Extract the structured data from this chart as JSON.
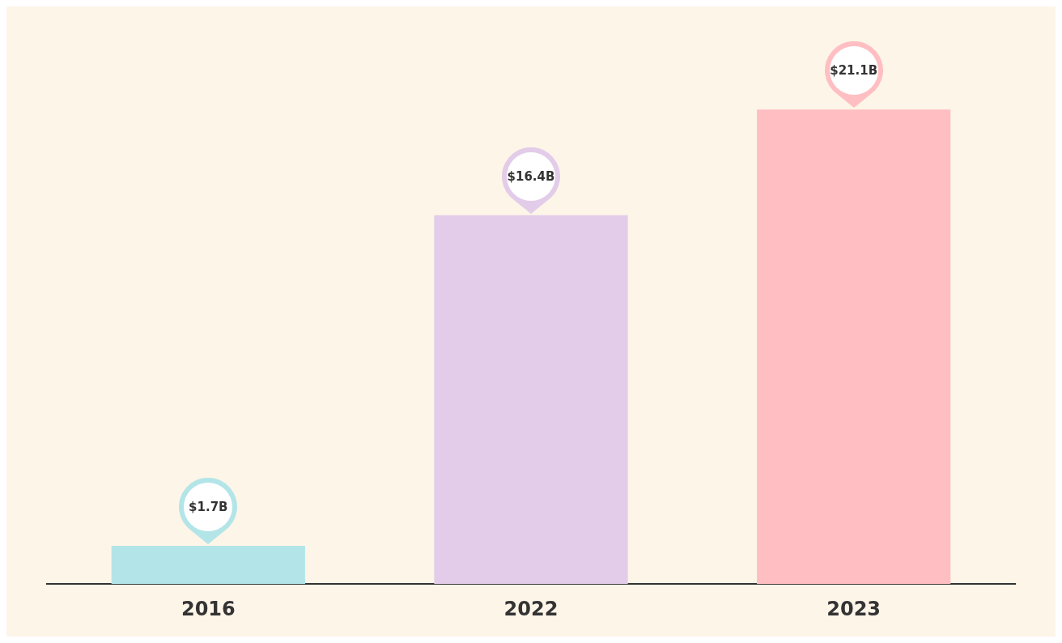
{
  "chart_data": {
    "type": "bar",
    "categories": [
      "2016",
      "2022",
      "2023"
    ],
    "values": [
      1.7,
      16.4,
      21.1
    ],
    "colors": [
      "#b3e5e8",
      "#e2cce9",
      "#ffbfc2"
    ],
    "value_labels": [
      "$1.7B",
      "$16.4B",
      "$21.1B"
    ],
    "tick_labels": "x",
    "grid": false,
    "legend": false
  }
}
